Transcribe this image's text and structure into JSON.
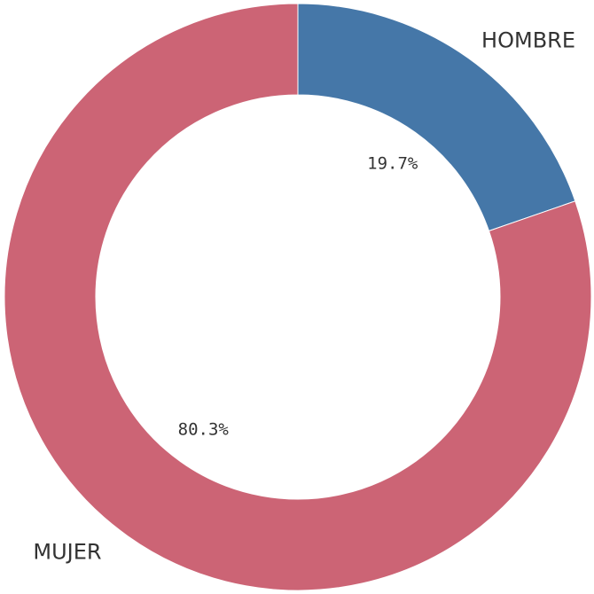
{
  "chart_data": {
    "type": "donut",
    "categories": [
      "HOMBRE",
      "MUJER"
    ],
    "values": [
      19.7,
      80.3
    ],
    "value_labels": [
      "19.7%",
      "80.3%"
    ],
    "colors": [
      "#4577a8",
      "#cc6475"
    ]
  }
}
